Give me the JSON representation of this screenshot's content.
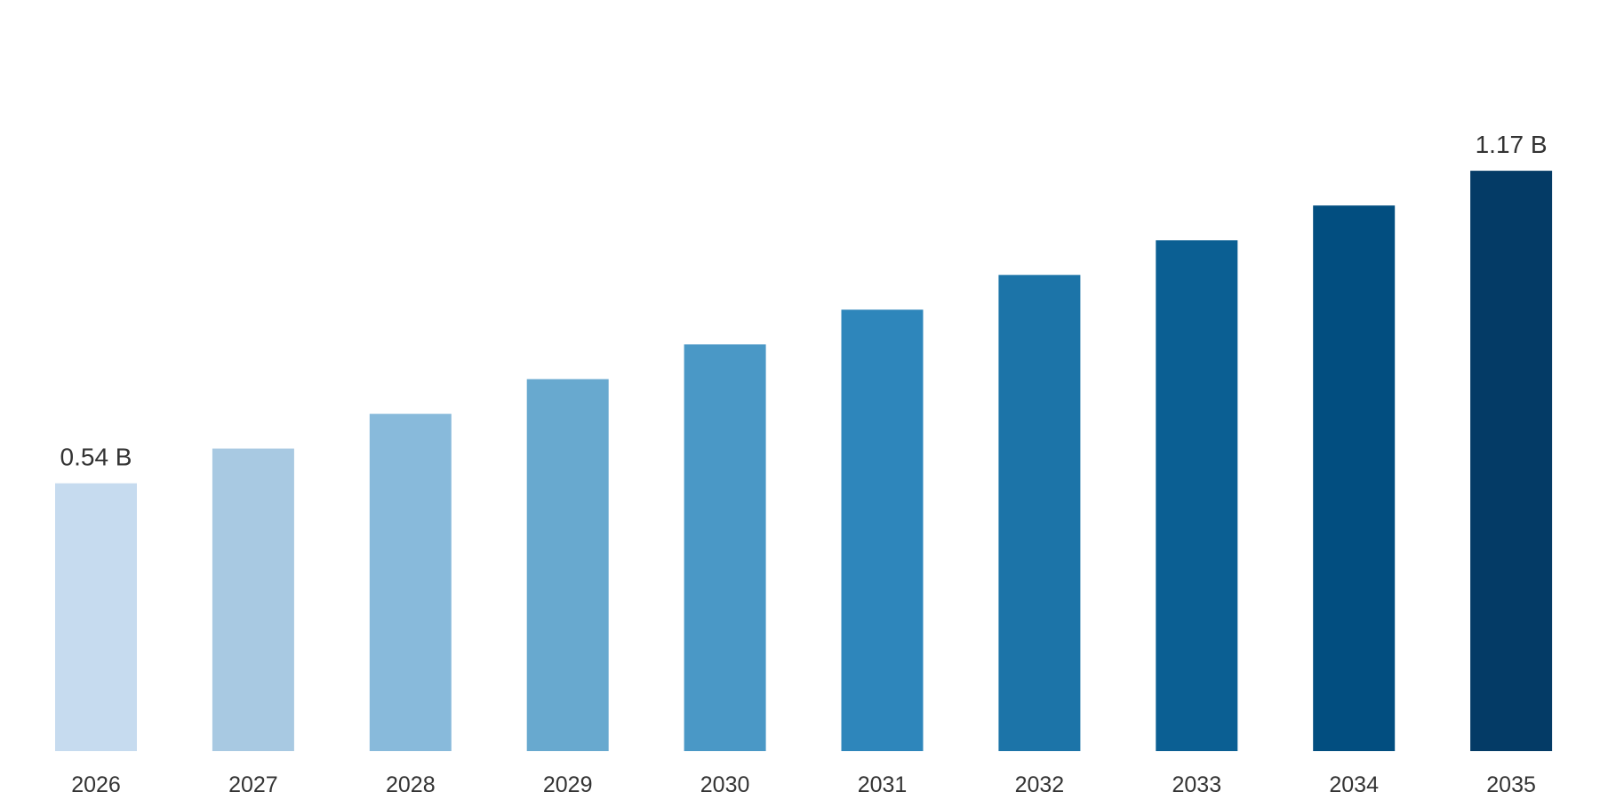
{
  "chart_data": {
    "type": "bar",
    "categories": [
      "2026",
      "2027",
      "2028",
      "2029",
      "2030",
      "2031",
      "2032",
      "2033",
      "2034",
      "2035"
    ],
    "values": [
      0.54,
      0.61,
      0.68,
      0.75,
      0.82,
      0.89,
      0.96,
      1.03,
      1.1,
      1.17
    ],
    "data_labels": [
      "0.54 B",
      "",
      "",
      "",
      "",
      "",
      "",
      "",
      "",
      "1.17 B"
    ],
    "colors": [
      "#c6dbef",
      "#a8c9e2",
      "#88badb",
      "#68a9cf",
      "#4a98c6",
      "#2e86bb",
      "#1c74a8",
      "#0b5f93",
      "#024e80",
      "#043b66"
    ],
    "title": "",
    "xlabel": "",
    "ylabel": "",
    "ylim": [
      0,
      1.4
    ],
    "grid": false,
    "legend": "none"
  }
}
